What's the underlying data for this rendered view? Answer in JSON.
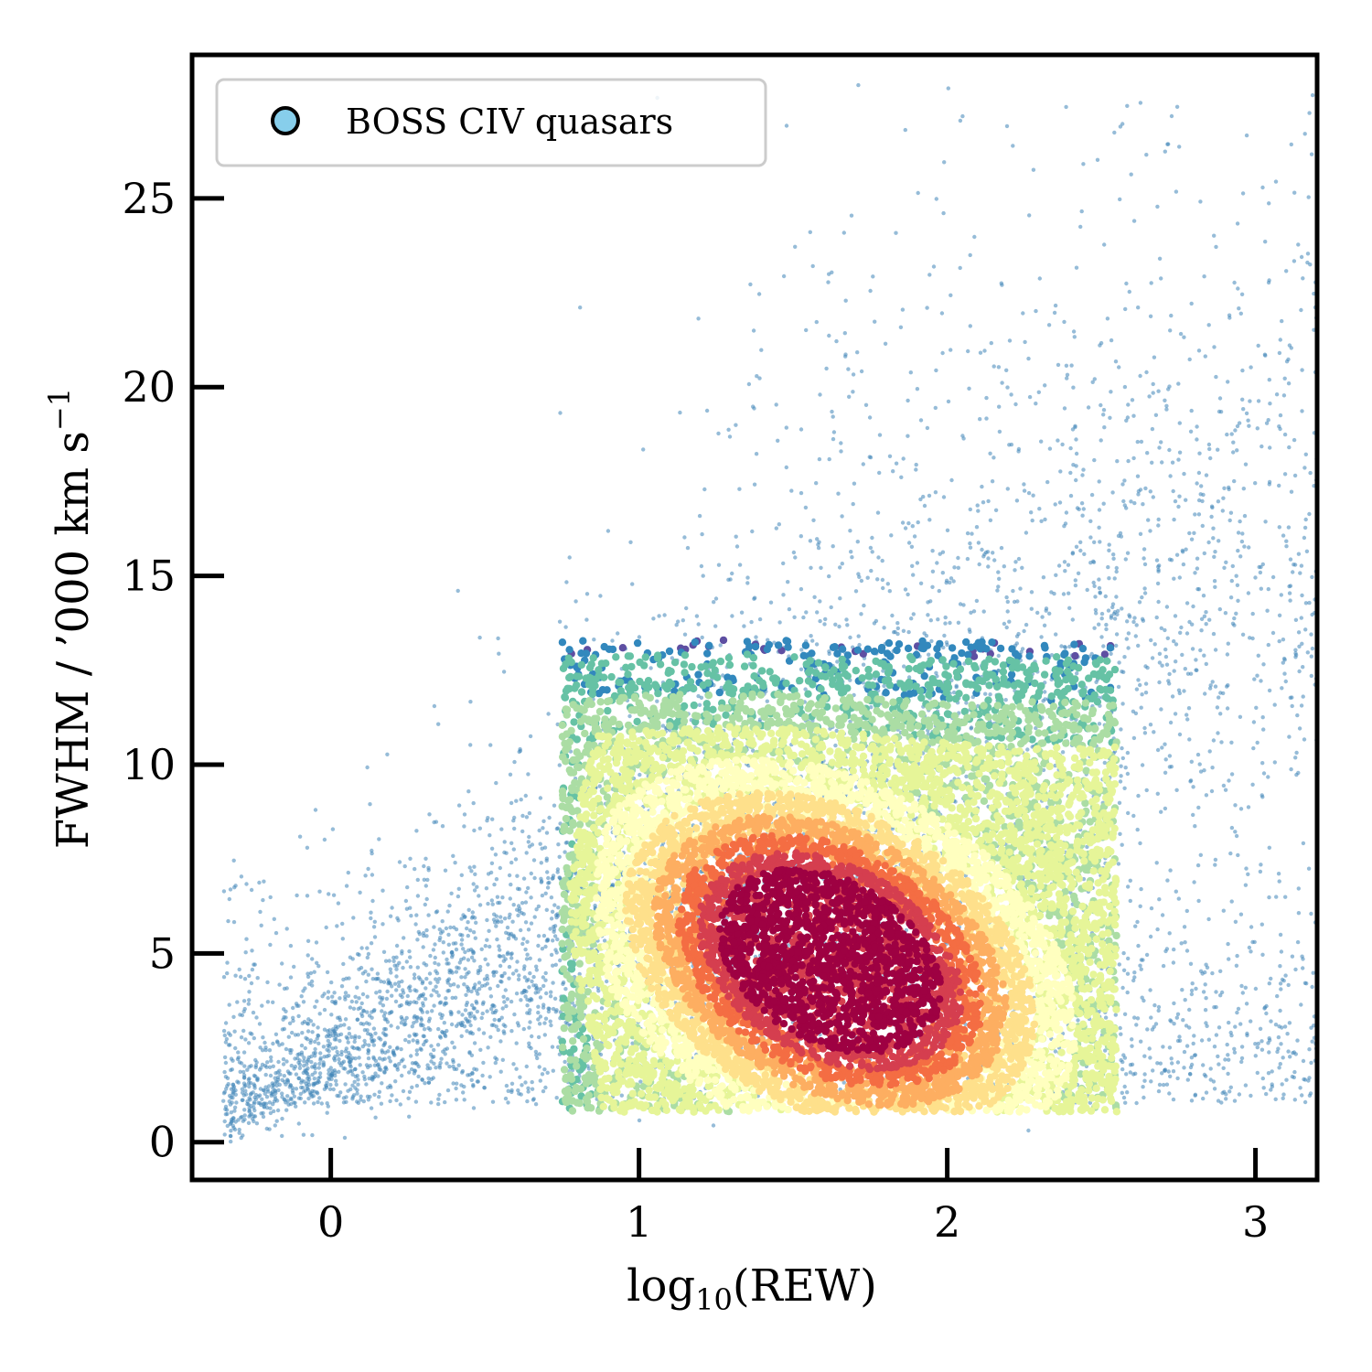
{
  "chart_data": {
    "type": "scatter",
    "xlabel": "log10(REW)",
    "xlabel_base": "log",
    "xlabel_sub": "10",
    "xlabel_rest": "(REW)",
    "ylabel": "FWHM / ’000 km s−1",
    "ylabel_main": "FWHM / ’000 km s",
    "ylabel_sup": "−1",
    "xlim": [
      -0.45,
      3.2
    ],
    "ylim": [
      -1,
      28.8
    ],
    "xticks": [
      0,
      1,
      2,
      3
    ],
    "xtick_labels": [
      "0",
      "1",
      "2",
      "3"
    ],
    "yticks": [
      0,
      5,
      10,
      15,
      20,
      25
    ],
    "ytick_labels": [
      "0",
      "5",
      "10",
      "15",
      "20",
      "25"
    ],
    "grid": false,
    "legend_position": "top-left",
    "series": [
      {
        "name": "BOSS CIV quasars",
        "marker_color": "#87ceeb",
        "density_peak": {
          "x": 1.62,
          "y": 4.8
        },
        "density_core": {
          "x_range": [
            1.2,
            2.3
          ],
          "y_range": [
            1,
            9.5
          ]
        },
        "scatter_extent": {
          "x_range": [
            -0.35,
            3.2
          ],
          "y_range": [
            0,
            28
          ]
        }
      }
    ],
    "colormap": [
      "#9e0142",
      "#d53e4f",
      "#f46d43",
      "#fdae61",
      "#fee08b",
      "#ffffbf",
      "#e6f598",
      "#abdda4",
      "#66c2a5",
      "#3288bd",
      "#5e4fa2"
    ]
  }
}
